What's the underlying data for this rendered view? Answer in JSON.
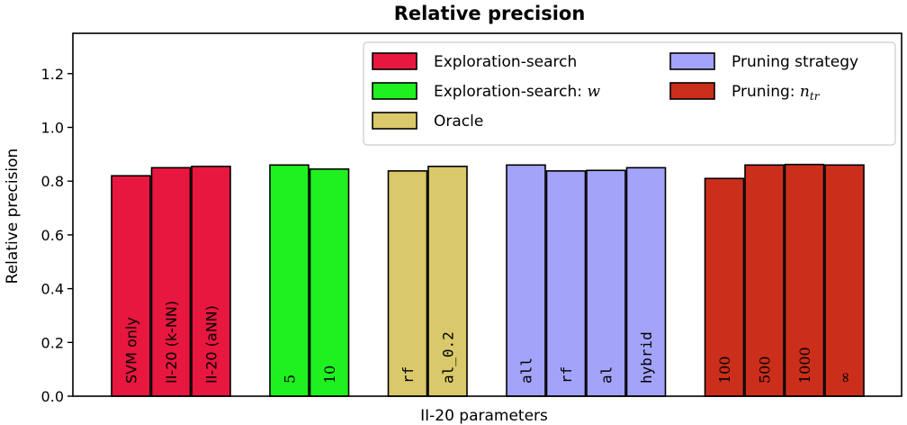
{
  "chart_data": {
    "type": "bar",
    "title": "Relative precision",
    "xlabel": "II-20 parameters",
    "ylabel": "Relative precision",
    "ylim": [
      0,
      1.35
    ],
    "yticks": [
      0.0,
      0.2,
      0.4,
      0.6,
      0.8,
      1.0,
      1.2
    ],
    "grid": false,
    "legend_position": "top-right",
    "groups": [
      {
        "name": "Exploration-search",
        "legend_label": "Exploration-search",
        "legend_math": "",
        "color": "#E8173F",
        "label_font": "sans",
        "bars": [
          {
            "label": "SVM only",
            "value": 0.82
          },
          {
            "label": "II-20 (k-NN)",
            "value": 0.85
          },
          {
            "label": "II-20 (aNN)",
            "value": 0.855
          }
        ]
      },
      {
        "name": "Exploration-search: w",
        "legend_label": "Exploration-search: ",
        "legend_math": "w",
        "color": "#1FF01F",
        "label_font": "serif",
        "bars": [
          {
            "label": "5",
            "value": 0.86
          },
          {
            "label": "10",
            "value": 0.845
          }
        ]
      },
      {
        "name": "Oracle",
        "legend_label": "Oracle",
        "legend_math": "",
        "color": "#D9C96A",
        "label_font": "mono",
        "bars": [
          {
            "label": "rf",
            "value": 0.838
          },
          {
            "label": "al_0.2",
            "value": 0.855
          }
        ]
      },
      {
        "name": "Pruning strategy",
        "legend_label": "Pruning strategy",
        "legend_math": "",
        "color": "#A3A3FA",
        "label_font": "mono",
        "bars": [
          {
            "label": "all",
            "value": 0.86
          },
          {
            "label": "rf",
            "value": 0.838
          },
          {
            "label": "al",
            "value": 0.84
          },
          {
            "label": "hybrid",
            "value": 0.85
          }
        ]
      },
      {
        "name": "Pruning: n_tr",
        "legend_label": "Pruning: ",
        "legend_math": "n",
        "legend_math_sub": "tr",
        "color": "#CC2E1C",
        "label_font": "serif",
        "bars": [
          {
            "label": "100",
            "value": 0.81
          },
          {
            "label": "500",
            "value": 0.86
          },
          {
            "label": "1000",
            "value": 0.862
          },
          {
            "label": "∞",
            "value": 0.86
          }
        ]
      }
    ]
  }
}
